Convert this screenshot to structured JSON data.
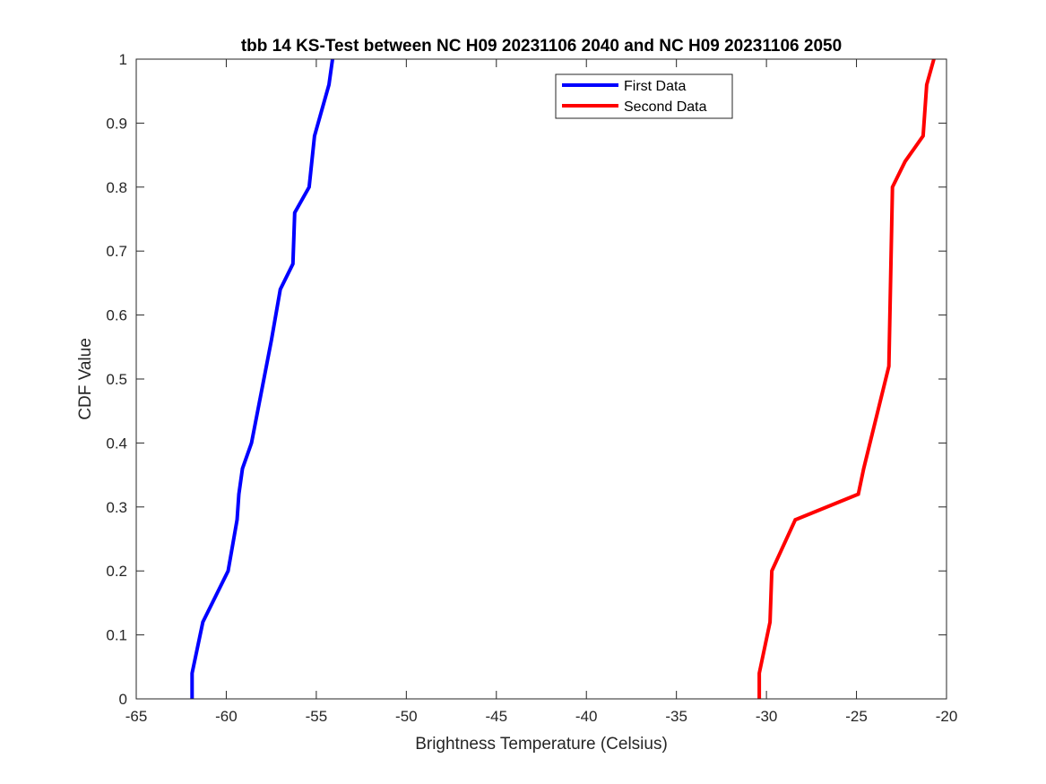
{
  "chart_data": {
    "type": "line",
    "title": "tbb 14 KS-Test between NC H09 20231106 2040 and NC H09 20231106 2050",
    "xlabel": "Brightness Temperature (Celsius)",
    "ylabel": "CDF Value",
    "xlim": [
      -65,
      -20
    ],
    "ylim": [
      0,
      1
    ],
    "xticks": [
      -65,
      -60,
      -55,
      -50,
      -45,
      -40,
      -35,
      -30,
      -25,
      -20
    ],
    "yticks": [
      0,
      0.1,
      0.2,
      0.3,
      0.4,
      0.5,
      0.6,
      0.7,
      0.8,
      0.9,
      1
    ],
    "grid": false,
    "legend_position": "top-right",
    "series": [
      {
        "name": "First Data",
        "color": "#0000ff",
        "x": [
          -61.9,
          -61.9,
          -61.3,
          -59.9,
          -59.4,
          -59.3,
          -59.1,
          -58.6,
          -57.5,
          -57.0,
          -56.3,
          -56.2,
          -55.4,
          -55.1,
          -54.3,
          -54.1
        ],
        "y": [
          0,
          0.04,
          0.12,
          0.2,
          0.28,
          0.32,
          0.36,
          0.4,
          0.56,
          0.64,
          0.68,
          0.76,
          0.8,
          0.88,
          0.96,
          1
        ]
      },
      {
        "name": "Second Data",
        "color": "#ff0000",
        "x": [
          -30.4,
          -30.4,
          -29.8,
          -29.7,
          -28.4,
          -24.9,
          -24.6,
          -23.2,
          -23.0,
          -22.3,
          -21.3,
          -21.1,
          -20.7
        ],
        "y": [
          0,
          0.04,
          0.12,
          0.2,
          0.28,
          0.32,
          0.36,
          0.52,
          0.8,
          0.84,
          0.88,
          0.96,
          1
        ]
      }
    ]
  }
}
